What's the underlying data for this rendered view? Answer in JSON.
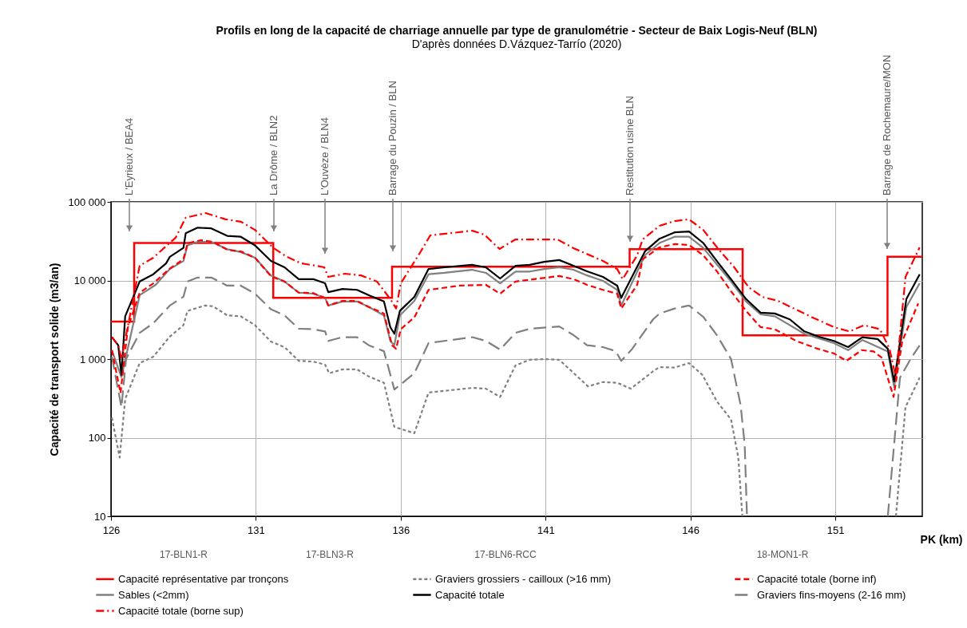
{
  "chart_data": {
    "type": "line",
    "title": "Profils en long de la capacité de charriage annuelle par type de granulométrie - Secteur de Baix Logis-Neuf (BLN)",
    "subtitle": "D'après données D.Vázquez-Tarrío (2020)",
    "xlabel": "PK (km)",
    "ylabel": "Capacité de transport solide (m3/an)",
    "xlim": [
      126,
      154
    ],
    "xticks": [
      126,
      131,
      136,
      141,
      146,
      151
    ],
    "ylim": [
      10,
      100000
    ],
    "yticks": [
      10,
      100,
      {
        "value": 1000,
        "label": "1 000"
      },
      {
        "value": 10000,
        "label": "10 000"
      },
      {
        "value": 100000,
        "label": "100 000"
      }
    ],
    "log": true,
    "grid": true,
    "legend": "bottom",
    "marker": "none",
    "series": [
      {
        "name": "Capacité représentative par tronçons",
        "type": "step",
        "color": "#ff0000",
        "line_style": "solid",
        "x": [
          126,
          126.8,
          131.6,
          135.7,
          143.9,
          147.8,
          152.8,
          154
        ],
        "values": [
          3000,
          30000,
          6000,
          15000,
          25000,
          2000,
          20000,
          20000
        ]
      },
      {
        "name": "Sables (<2mm)",
        "color": "#808080",
        "line_style": "solid",
        "x": [
          126.03,
          126.36,
          126.99,
          127.54,
          128.03,
          128.5,
          128.64,
          128.99,
          129.46,
          130.01,
          130.48,
          130.97,
          131.52,
          131.99,
          132.48,
          132.98,
          133.39,
          133.5,
          133.99,
          134.49,
          134.9,
          135.42,
          135.64,
          135.78,
          135.97,
          136.47,
          136.96,
          137.51,
          138.45,
          138.94,
          139.43,
          139.96,
          140.45,
          140.95,
          141.47,
          141.96,
          142.43,
          142.98,
          143.47,
          143.61,
          144.43,
          144.93,
          145.45,
          145.95,
          146.44,
          146.91,
          147.4,
          147.92,
          148.42,
          148.91,
          149.93,
          150.95,
          151.44,
          151.93,
          152.81,
          153.03,
          153.45,
          153.91
        ],
        "values": [
          1300,
          590,
          6500,
          8800,
          14000,
          17700,
          28000,
          31000,
          31000,
          25000,
          23000,
          19500,
          11600,
          9700,
          7000,
          6800,
          6000,
          4800,
          5400,
          5400,
          4600,
          3600,
          1700,
          1500,
          3600,
          5500,
          12000,
          12500,
          13700,
          12500,
          9200,
          13000,
          13000,
          14000,
          14700,
          13700,
          11600,
          9900,
          7600,
          4800,
          21000,
          30000,
          36000,
          36000,
          26000,
          16000,
          9700,
          5400,
          3700,
          3500,
          2100,
          1600,
          1300,
          1750,
          1250,
          440,
          4600,
          9200
        ]
      },
      {
        "name": "Graviers fins-moyens (2-16 mm)",
        "color": "#7f7f7f",
        "line_style": "long_dashed",
        "x": [
          126.03,
          126.36,
          126.52,
          126.99,
          127.46,
          128.03,
          128.5,
          128.64,
          128.99,
          129.46,
          130.01,
          130.48,
          130.97,
          131.52,
          131.99,
          132.48,
          132.98,
          133.39,
          133.5,
          133.99,
          134.49,
          134.9,
          135.42,
          135.78,
          136.47,
          136.96,
          138.47,
          138.94,
          139.43,
          139.96,
          140.45,
          141.47,
          141.96,
          142.43,
          142.98,
          143.42,
          143.61,
          143.97,
          144.71,
          144.93,
          145.45,
          145.95,
          146.44,
          146.91,
          147.4,
          147.73,
          147.87,
          147.95,
          150.0,
          152.81,
          153.23,
          153.64,
          153.91
        ],
        "values": [
          1070,
          245,
          1000,
          2160,
          2860,
          4800,
          6200,
          9700,
          10900,
          10900,
          8600,
          8600,
          6800,
          4300,
          3600,
          2430,
          2400,
          2250,
          1700,
          1900,
          1900,
          1500,
          1260,
          410,
          660,
          1600,
          1900,
          1700,
          1320,
          2160,
          2430,
          2600,
          2020,
          1500,
          1420,
          1260,
          950,
          1320,
          3200,
          3800,
          4400,
          4800,
          3450,
          2020,
          1000,
          260,
          82,
          10,
          null,
          10,
          580,
          1070,
          1490
        ]
      },
      {
        "name": "Graviers grossiers - cailloux (>16 mm)",
        "color": "#808080",
        "line_style": "short_dashed",
        "x": [
          126.03,
          126.3,
          126.49,
          126.99,
          127.46,
          128.01,
          128.5,
          128.64,
          129.24,
          129.52,
          130.01,
          130.48,
          130.97,
          131.52,
          131.99,
          132.48,
          132.98,
          133.39,
          133.53,
          133.99,
          134.49,
          134.9,
          135.42,
          135.78,
          136.47,
          136.96,
          138.47,
          138.94,
          139.43,
          139.96,
          140.45,
          140.95,
          141.47,
          141.96,
          142.46,
          142.98,
          143.47,
          143.94,
          144.71,
          144.93,
          145.45,
          145.95,
          146.41,
          146.91,
          147.4,
          147.65,
          147.79,
          150.0,
          153.09,
          153.42,
          153.91
        ],
        "values": [
          180,
          56,
          310,
          890,
          1070,
          1900,
          2700,
          4100,
          4800,
          4700,
          3600,
          3500,
          2700,
          1670,
          1420,
          950,
          930,
          850,
          660,
          740,
          740,
          600,
          500,
          137,
          114,
          375,
          430,
          420,
          330,
          830,
          980,
          1000,
          980,
          670,
          450,
          510,
          500,
          420,
          700,
          790,
          780,
          890,
          630,
          290,
          170,
          56,
          10,
          null,
          10,
          245,
          580
        ]
      },
      {
        "name": "Capacité totale",
        "color": "#000000",
        "line_style": "solid",
        "x": [
          126.03,
          126.25,
          126.36,
          126.49,
          126.99,
          127.46,
          127.9,
          128.03,
          128.5,
          128.58,
          128.99,
          129.46,
          130.01,
          130.48,
          130.97,
          131.52,
          131.99,
          132.48,
          132.98,
          133.39,
          133.5,
          133.99,
          134.49,
          134.9,
          135.42,
          135.64,
          135.78,
          135.97,
          136.47,
          136.96,
          137.51,
          138.45,
          138.94,
          139.43,
          139.96,
          140.45,
          140.95,
          141.47,
          141.96,
          142.43,
          142.98,
          143.47,
          143.61,
          144.43,
          144.93,
          145.45,
          145.95,
          146.44,
          146.91,
          147.4,
          147.92,
          148.42,
          148.91,
          149.43,
          149.93,
          150.48,
          150.95,
          151.44,
          151.93,
          152.46,
          152.81,
          153.03,
          153.45,
          153.91
        ],
        "values": [
          1900,
          1500,
          630,
          3500,
          9700,
          12000,
          16500,
          20000,
          26000,
          40000,
          47000,
          46000,
          37000,
          36000,
          28000,
          17700,
          14700,
          10400,
          10400,
          9200,
          7100,
          7800,
          7600,
          6500,
          5400,
          2550,
          2100,
          4100,
          6200,
          14000,
          14700,
          15800,
          14700,
          10600,
          15400,
          15800,
          17300,
          18200,
          15400,
          13100,
          11100,
          8600,
          6000,
          23500,
          34000,
          41000,
          42000,
          30000,
          17700,
          10400,
          5800,
          3900,
          3800,
          3200,
          2250,
          1900,
          1700,
          1420,
          1900,
          1800,
          1350,
          520,
          5800,
          12000
        ]
      },
      {
        "name": "Capacité totale (borne sup)",
        "color": "#ff0000",
        "line_style": "dash_dot",
        "x": [
          126.03,
          126.25,
          126.36,
          126.99,
          127.46,
          128.01,
          128.23,
          128.58,
          129.27,
          129.96,
          130.48,
          130.97,
          131.6,
          132.07,
          132.57,
          133.09,
          133.36,
          133.5,
          134.08,
          134.63,
          135.18,
          135.64,
          135.84,
          136.0,
          136.66,
          137.02,
          138.47,
          138.88,
          139.41,
          139.96,
          141.41,
          141.96,
          142.98,
          143.47,
          143.66,
          144.16,
          144.35,
          144.93,
          145.45,
          145.95,
          146.44,
          146.96,
          147.51,
          148.01,
          148.47,
          149.02,
          149.57,
          150.2,
          150.95,
          151.49,
          151.99,
          152.54,
          152.87,
          153.09,
          153.42,
          153.91
        ],
        "values": [
          1900,
          1500,
          1000,
          15400,
          19500,
          29700,
          35000,
          63000,
          72000,
          60000,
          56000,
          44000,
          26000,
          20000,
          16500,
          15400,
          14700,
          11100,
          12200,
          11600,
          9700,
          5800,
          4400,
          9200,
          22400,
          37500,
          43000,
          38400,
          25200,
          33300,
          33300,
          25800,
          17700,
          14000,
          10400,
          20900,
          33300,
          49600,
          57000,
          60000,
          44000,
          25200,
          14700,
          8200,
          6200,
          5500,
          4400,
          3400,
          2550,
          2250,
          2700,
          2400,
          1350,
          580,
          11100,
          26400
        ]
      },
      {
        "name": "Capacité totale (borne inf)",
        "color": "#ff0000",
        "line_style": "dashed",
        "x": [
          126.03,
          126.33,
          126.58,
          126.99,
          127.46,
          128.01,
          128.5,
          128.64,
          129.1,
          129.52,
          130.01,
          130.48,
          130.97,
          131.52,
          131.99,
          132.48,
          132.98,
          133.39,
          133.5,
          133.99,
          134.49,
          134.9,
          135.42,
          135.7,
          135.84,
          136.0,
          136.47,
          136.96,
          138.03,
          138.94,
          139.43,
          139.96,
          141.47,
          141.96,
          142.43,
          142.98,
          143.47,
          143.61,
          144.16,
          144.35,
          144.93,
          145.45,
          145.95,
          146.44,
          146.91,
          147.4,
          147.92,
          148.42,
          148.91,
          149.65,
          150.4,
          150.95,
          151.38,
          151.91,
          152.32,
          152.59,
          153.01,
          153.31,
          153.86
        ],
        "values": [
          1300,
          370,
          2500,
          7000,
          9200,
          14000,
          18600,
          29700,
          32600,
          31000,
          24600,
          23400,
          19500,
          11300,
          9700,
          7000,
          6900,
          6000,
          4800,
          5500,
          5500,
          4600,
          3800,
          1500,
          1350,
          2400,
          3400,
          7600,
          8600,
          8800,
          6800,
          9700,
          11400,
          10400,
          8800,
          7600,
          6800,
          4400,
          8800,
          18600,
          26400,
          29000,
          28300,
          20900,
          13100,
          7300,
          4100,
          2550,
          2400,
          1700,
          1350,
          1180,
          950,
          1300,
          1250,
          1050,
          330,
          1700,
          5100
        ]
      }
    ],
    "annotations": [
      "L'Eyrieux / BEA4",
      "La Drôme / BLN2",
      "L'Ouvèze / BLN4",
      "Barrage du Pouzin / BLN",
      "Restitution usine BLN",
      "Barrage de Rochemaure/MON",
      "17-BLN1-R",
      "17-BLN3-R",
      "17-BLN6-RCC",
      "18-MON1-R"
    ]
  }
}
